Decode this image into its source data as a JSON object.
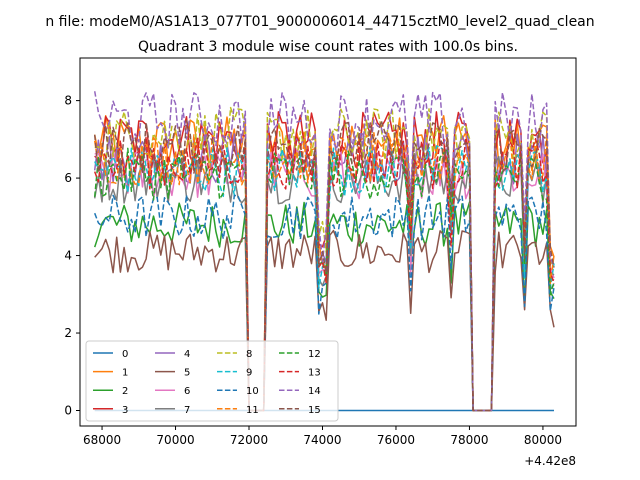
{
  "figure_title": "n file: modeM0/AS1A13_077T01_9000006014_44715cztM0_level2_quad_clean",
  "chart_data": {
    "type": "line",
    "title": "Quadrant 3 module wise count rates with 100.0s bins.",
    "xlabel": "",
    "ylabel": "",
    "x_offset_label": "+4.42e8",
    "xlim": [
      67400,
      80900
    ],
    "ylim": [
      -0.4,
      9.1
    ],
    "xticks": [
      68000,
      70000,
      72000,
      74000,
      76000,
      78000,
      80000
    ],
    "xtick_labels": [
      "68000",
      "70000",
      "72000",
      "74000",
      "76000",
      "78000",
      "80000"
    ],
    "yticks": [
      0,
      2,
      4,
      6,
      8
    ],
    "ytick_labels": [
      "0",
      "2",
      "4",
      "6",
      "8"
    ],
    "grid": false,
    "legend_position": "lower-left",
    "legend_ncol": 4,
    "x_range": [
      67800,
      80300
    ],
    "x_step": 100,
    "gaps": [
      {
        "start": 71950,
        "end": 72450
      },
      {
        "start": 78000,
        "end": 78700
      }
    ],
    "series": [
      {
        "name": "0",
        "color": "#1f77b4",
        "dash": "solid",
        "level": 0.0
      },
      {
        "name": "1",
        "color": "#ff7f0e",
        "dash": "solid",
        "level": 6.9
      },
      {
        "name": "2",
        "color": "#2ca02c",
        "dash": "solid",
        "level": 4.8
      },
      {
        "name": "3",
        "color": "#d62728",
        "dash": "solid",
        "level": 7.0
      },
      {
        "name": "4",
        "color": "#9467bd",
        "dash": "solid",
        "level": 6.5
      },
      {
        "name": "5",
        "color": "#8c564b",
        "dash": "solid",
        "level": 4.1
      },
      {
        "name": "6",
        "color": "#e377c2",
        "dash": "solid",
        "level": 6.1
      },
      {
        "name": "7",
        "color": "#7f7f7f",
        "dash": "solid",
        "level": 6.0
      },
      {
        "name": "8",
        "color": "#bcbd22",
        "dash": "dashed",
        "level": 7.1
      },
      {
        "name": "9",
        "color": "#17becf",
        "dash": "dashed",
        "level": 6.2
      },
      {
        "name": "10",
        "color": "#1f77b4",
        "dash": "dashed",
        "level": 5.0
      },
      {
        "name": "11",
        "color": "#ff7f0e",
        "dash": "dashed",
        "level": 6.5
      },
      {
        "name": "12",
        "color": "#2ca02c",
        "dash": "dashed",
        "level": 6.1
      },
      {
        "name": "13",
        "color": "#d62728",
        "dash": "dashed",
        "level": 6.4
      },
      {
        "name": "14",
        "color": "#9467bd",
        "dash": "dashed",
        "level": 7.5
      },
      {
        "name": "15",
        "color": "#8c564b",
        "dash": "dashed",
        "level": 6.8
      }
    ]
  }
}
